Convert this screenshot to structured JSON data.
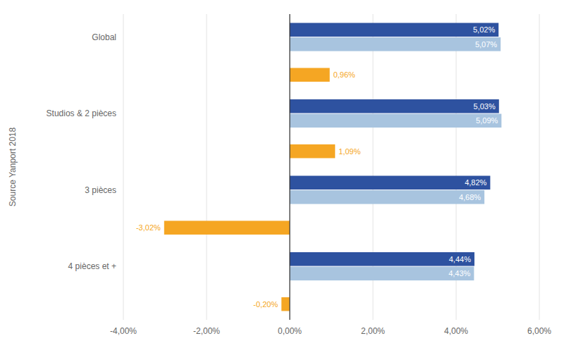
{
  "chart_data": {
    "type": "bar",
    "orientation": "horizontal",
    "data_labels": true,
    "grid": true,
    "ylabel": "Source Yanport 2018",
    "categories": [
      "Global",
      "Studios & 2 pièces",
      "3 pièces",
      "4 pièces et +"
    ],
    "series": [
      {
        "color": "#2e52a0",
        "values": [
          5.02,
          5.03,
          4.82,
          4.44
        ],
        "value_labels": [
          "5,02%",
          "5,03%",
          "4,82%",
          "4,44%"
        ]
      },
      {
        "color": "#a8c4df",
        "values": [
          5.07,
          5.09,
          4.68,
          4.43
        ],
        "value_labels": [
          "5,07%",
          "5,09%",
          "4,68%",
          "4,43%"
        ]
      },
      {
        "color": "#f5a623",
        "values": [
          0.96,
          1.09,
          -3.02,
          -0.2
        ],
        "value_labels": [
          "0,96%",
          "1,09%",
          "-3,02%",
          "-0,20%"
        ]
      }
    ],
    "xlim": [
      -4.0,
      6.0
    ],
    "xticks": [
      {
        "value": -4.0,
        "label": "-4,00%"
      },
      {
        "value": -2.0,
        "label": "-2,00%"
      },
      {
        "value": 0.0,
        "label": "0,00%"
      },
      {
        "value": 2.0,
        "label": "2,00%"
      },
      {
        "value": 4.0,
        "label": "4,00%"
      },
      {
        "value": 6.0,
        "label": "6,00%"
      }
    ]
  }
}
